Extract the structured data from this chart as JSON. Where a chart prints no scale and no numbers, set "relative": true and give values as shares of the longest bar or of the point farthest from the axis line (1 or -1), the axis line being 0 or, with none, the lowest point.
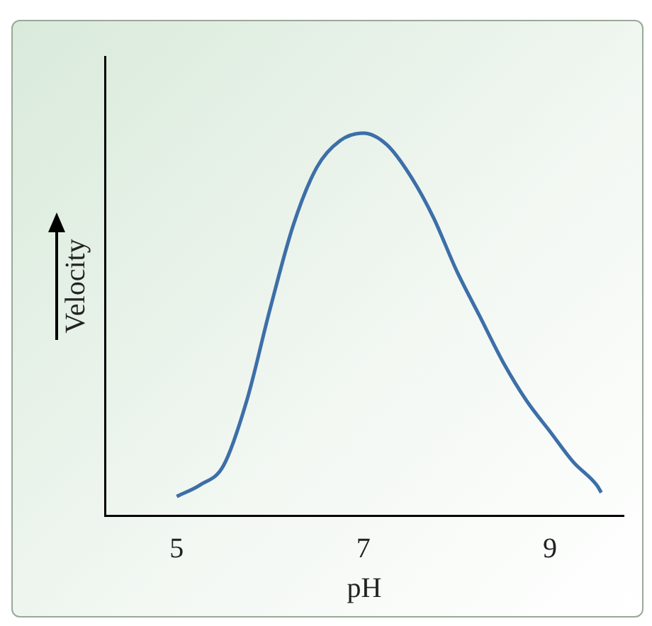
{
  "chart_data": {
    "type": "line",
    "xlabel": "pH",
    "ylabel": "Velocity",
    "relative": true,
    "x": [
      5,
      5.25,
      5.5,
      5.75,
      6,
      6.25,
      6.5,
      6.75,
      7,
      7.25,
      7.5,
      7.75,
      8,
      8.25,
      8.5,
      8.75,
      9,
      9.25,
      9.5,
      9.55
    ],
    "series": [
      {
        "color": "#3d6fa8",
        "values": [
          0.05,
          0.08,
          0.13,
          0.3,
          0.54,
          0.76,
          0.91,
          0.98,
          1,
          0.97,
          0.89,
          0.78,
          0.64,
          0.52,
          0.4,
          0.3,
          0.22,
          0.14,
          0.08,
          0.06
        ]
      }
    ],
    "xlim": [
      4.23,
      9.79
    ],
    "xticks": [
      5,
      7,
      9
    ],
    "grid": false,
    "legend": false,
    "marker": "none",
    "line_style": "solid"
  }
}
